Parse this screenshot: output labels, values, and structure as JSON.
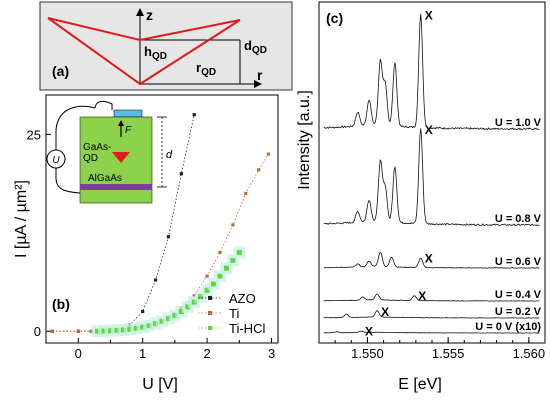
{
  "chart_data": [
    {
      "panel": "(a)",
      "type": "diagram",
      "labels": {
        "z": "z",
        "r": "r",
        "h": "h",
        "h_sub": "QD",
        "d": "d",
        "d_sub": "QD",
        "r_lbl": "r",
        "r_sub": "QD"
      },
      "colors": {
        "background": "#e6e6e6",
        "line": "#e11b1b"
      }
    },
    {
      "panel": "(b)",
      "type": "scatter",
      "xlabel": "U [V]",
      "ylabel": "I [µA / µm²]",
      "xlim": [
        -0.5,
        3.1
      ],
      "ylim": [
        -1.5,
        30
      ],
      "xticks": [
        0,
        1,
        2,
        3
      ],
      "yticks": [
        0,
        25
      ],
      "legend_position": "bottom-right",
      "series": [
        {
          "name": "AZO",
          "color": "#222222",
          "marker": "square",
          "x": [
            -0.4,
            0.0,
            0.2,
            0.4,
            0.6,
            0.8,
            1.0,
            1.2,
            1.4,
            1.6,
            1.8
          ],
          "y": [
            0,
            0,
            0,
            0.05,
            0.2,
            0.8,
            2.5,
            6.5,
            12,
            20,
            27.5
          ]
        },
        {
          "name": "Ti",
          "color": "#b86e3f",
          "marker": "square",
          "x": [
            -0.4,
            0.0,
            0.2,
            0.4,
            0.6,
            0.8,
            1.0,
            1.2,
            1.4,
            1.6,
            1.8,
            2.0,
            2.2,
            2.4,
            2.6,
            2.8,
            2.95
          ],
          "y": [
            0,
            0,
            0,
            0.05,
            0.1,
            0.2,
            0.5,
            1.0,
            1.8,
            3.0,
            4.5,
            7.0,
            10.0,
            13.5,
            17.5,
            20.5,
            22.5
          ]
        },
        {
          "name": "Ti-HCl",
          "color": "#5ed838",
          "marker": "square",
          "x": [
            0.3,
            0.4,
            0.5,
            0.6,
            0.7,
            0.8,
            0.9,
            1.0,
            1.1,
            1.2,
            1.3,
            1.4,
            1.5,
            1.6,
            1.7,
            1.8,
            1.9,
            2.0,
            2.1,
            2.2,
            2.3,
            2.4,
            2.5
          ],
          "y": [
            0,
            0.02,
            0.05,
            0.1,
            0.15,
            0.25,
            0.35,
            0.5,
            0.7,
            0.95,
            1.25,
            1.6,
            2.0,
            2.5,
            3.1,
            3.7,
            4.4,
            5.2,
            6.0,
            7.0,
            8.0,
            9.0,
            10.0
          ]
        }
      ],
      "inset": {
        "label1": "GaAs-",
        "label2": "QD",
        "label3": "AlGaAs",
        "force": "F",
        "depth": "d",
        "source": "U",
        "colors": {
          "top": "#58bde5",
          "bulk": "#8cd24a",
          "layer": "#7a3fa0",
          "qd": "#e11b1b"
        }
      }
    },
    {
      "panel": "(c)",
      "type": "line",
      "xlabel": "E [eV]",
      "ylabel": "Intensity [a.u.]",
      "xlim": [
        1.547,
        1.561
      ],
      "xticks": [
        1.55,
        1.555,
        1.56
      ],
      "xtick_labels": [
        "1.550",
        "1.555",
        "1.560"
      ],
      "peak_marker": "X",
      "series": [
        {
          "name": "U = 1.0 V",
          "baseline": 0.0,
          "peaks": [
            [
              1.5533,
              0.98
            ],
            [
              1.5508,
              0.55
            ],
            [
              1.5517,
              0.55
            ],
            [
              1.5511,
              0.35
            ],
            [
              1.5501,
              0.22
            ],
            [
              1.5494,
              0.12
            ]
          ]
        },
        {
          "name": "U = 0.8 V",
          "baseline": 1.0,
          "peaks": [
            [
              1.5533,
              0.88
            ],
            [
              1.5508,
              0.55
            ],
            [
              1.5517,
              0.52
            ],
            [
              1.5511,
              0.32
            ],
            [
              1.5501,
              0.2
            ],
            [
              1.5494,
              0.1
            ]
          ]
        },
        {
          "name": "U = 0.6 V",
          "baseline": 2.0,
          "peaks": [
            [
              1.5533,
              0.25
            ],
            [
              1.5508,
              0.38
            ],
            [
              1.5515,
              0.26
            ],
            [
              1.5501,
              0.15
            ],
            [
              1.5494,
              0.08
            ]
          ]
        },
        {
          "name": "U = 0.4 V",
          "baseline": 3.0,
          "peaks": [
            [
              1.5529,
              0.16
            ],
            [
              1.5506,
              0.2
            ],
            [
              1.5497,
              0.1
            ]
          ]
        },
        {
          "name": "U = 0.2 V",
          "baseline": 4.0,
          "peaks": [
            [
              1.5506,
              0.22
            ],
            [
              1.5487,
              0.12
            ]
          ]
        },
        {
          "name": "U = 0 V (x10)",
          "baseline": 5.0,
          "peaks": [
            [
              1.5496,
              0.08
            ],
            [
              1.5481,
              0.06
            ]
          ]
        }
      ]
    }
  ]
}
